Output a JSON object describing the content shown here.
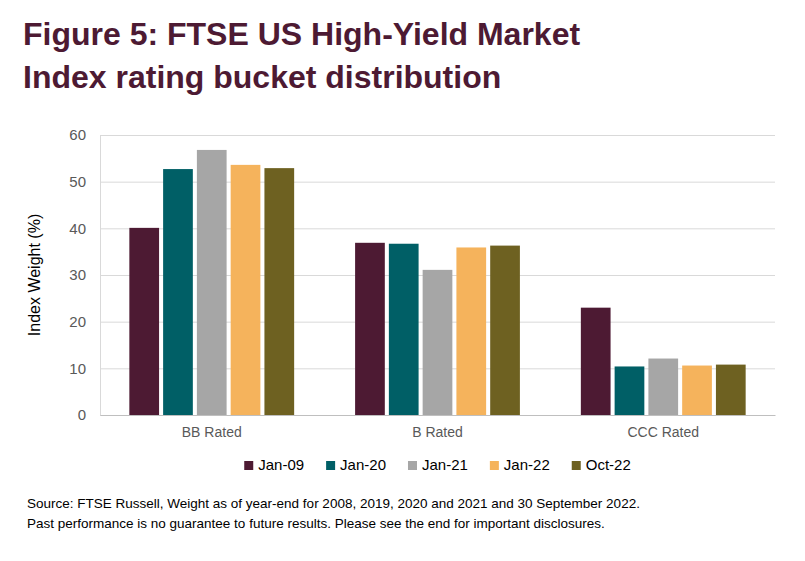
{
  "chart_data": {
    "type": "bar",
    "title": "Figure 5: FTSE US High-Yield Market Index rating bucket distribution",
    "y_label": "Index Weight (%)",
    "categories": [
      "BB Rated",
      "B Rated",
      "CCC Rated"
    ],
    "series": [
      {
        "name": "Jan-09",
        "color": "#4d1a33",
        "values": [
          40.1,
          36.9,
          23.0
        ]
      },
      {
        "name": "Jan-20",
        "color": "#005f66",
        "values": [
          52.7,
          36.7,
          10.4
        ]
      },
      {
        "name": "Jan-21",
        "color": "#a6a6a6",
        "values": [
          56.8,
          31.1,
          12.1
        ]
      },
      {
        "name": "Jan-22",
        "color": "#f5b35c",
        "values": [
          53.6,
          35.9,
          10.6
        ]
      },
      {
        "name": "Oct-22",
        "color": "#6e6121",
        "values": [
          52.9,
          36.3,
          10.8
        ]
      }
    ],
    "ylim": [
      0,
      60
    ],
    "yticks": [
      0,
      10,
      20,
      30,
      40,
      50,
      60
    ],
    "grid": true,
    "legend": "bottom",
    "annotations": [
      "Source: FTSE Russell, Weight as of year-end for 2008, 2019, 2020 and 2021 and 30 September 2022.",
      "Past performance is no guarantee to future results. Please see the end for important disclosures."
    ]
  }
}
